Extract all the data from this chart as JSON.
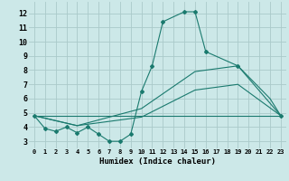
{
  "title": "",
  "xlabel": "Humidex (Indice chaleur)",
  "bg_color": "#cce8e8",
  "grid_color": "#aacaca",
  "line_color": "#1a7a6e",
  "xlim": [
    -0.5,
    23.5
  ],
  "ylim": [
    2.5,
    12.8
  ],
  "xticks": [
    0,
    1,
    2,
    3,
    4,
    5,
    6,
    7,
    8,
    9,
    10,
    11,
    12,
    13,
    14,
    15,
    16,
    17,
    18,
    19,
    20,
    21,
    22,
    23
  ],
  "yticks": [
    3,
    4,
    5,
    6,
    7,
    8,
    9,
    10,
    11,
    12
  ],
  "lines": [
    {
      "x": [
        0,
        1,
        2,
        3,
        4,
        5,
        6,
        7,
        8,
        9,
        10,
        11,
        12,
        14,
        15,
        16,
        19,
        23
      ],
      "y": [
        4.8,
        3.9,
        3.7,
        4.0,
        3.6,
        4.0,
        3.5,
        3.0,
        3.0,
        3.5,
        6.5,
        8.3,
        11.4,
        12.1,
        12.1,
        9.3,
        8.3,
        4.8
      ],
      "markers": true
    },
    {
      "x": [
        0,
        4,
        10,
        15,
        19,
        22,
        23
      ],
      "y": [
        4.8,
        4.1,
        5.3,
        7.9,
        8.3,
        6.0,
        4.8
      ],
      "markers": false
    },
    {
      "x": [
        0,
        4,
        10,
        15,
        19,
        21,
        23
      ],
      "y": [
        4.8,
        4.1,
        4.7,
        6.6,
        7.0,
        5.9,
        4.8
      ],
      "markers": false
    },
    {
      "x": [
        0,
        23
      ],
      "y": [
        4.8,
        4.8
      ],
      "markers": false
    }
  ]
}
